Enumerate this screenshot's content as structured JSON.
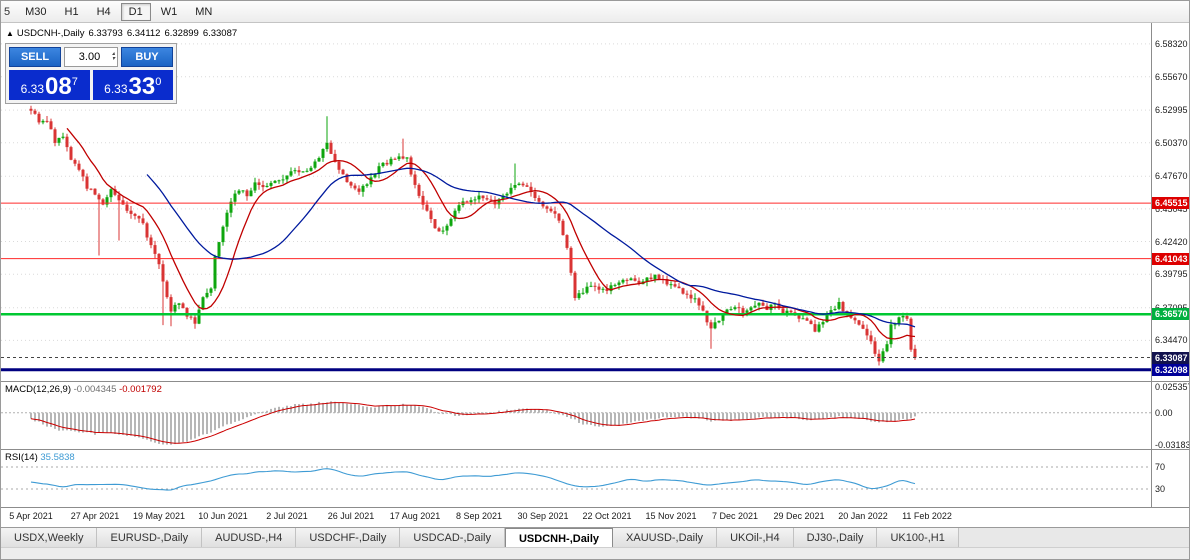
{
  "colors": {
    "up": "#0ea60e",
    "down": "#d93434",
    "ma_fast": "#c00000",
    "ma_slow": "#001a9e",
    "level_red": "#ff2a2a",
    "level_green": "#00c832",
    "level_navy": "#000080",
    "level_current": "#444444",
    "badge_red": "#dd0000",
    "badge_green": "#00b040",
    "badge_navy": "#000099",
    "badge_current": "#12124e",
    "macd_hist": "#b6b6b6",
    "macd_signal": "#cc0000",
    "rsi_line": "#3e9bd4",
    "grid": "#dadada"
  },
  "icons": {
    "one_click_toggle": "▲",
    "spin_up": "▴",
    "spin_down": "▾"
  },
  "toolbar": {
    "periods": [
      "5",
      "M30",
      "H1",
      "H4",
      "D1",
      "W1",
      "MN"
    ],
    "active": "D1",
    "clipped": "5"
  },
  "header": {
    "symbol_title": "USDCNH-,Daily",
    "ohlc": {
      "open": "6.33793",
      "high": "6.34112",
      "low": "6.32899",
      "close": "6.33087"
    }
  },
  "trade_panel": {
    "sell_label": "SELL",
    "buy_label": "BUY",
    "volume": "3.00",
    "sell_price": {
      "small": "6.33",
      "big": "08",
      "sup": "7"
    },
    "buy_price": {
      "small": "6.33",
      "big": "33",
      "sup": "0"
    }
  },
  "tabs": {
    "items": [
      "USDX,Weekly",
      "EURUSD-,Daily",
      "AUDUSD-,H4",
      "USDCHF-,Daily",
      "USDCAD-,Daily",
      "USDCNH-,Daily",
      "XAUUSD-,Daily",
      "UKOil-,H4",
      "DJ30-,Daily",
      "UK100-,H1"
    ],
    "active_index": 5
  },
  "chart_data": [
    {
      "type": "candlestick",
      "title": "USDCNH-,Daily",
      "x_labels": [
        "5 Apr 2021",
        "27 Apr 2021",
        "19 May 2021",
        "10 Jun 2021",
        "2 Jul 2021",
        "26 Jul 2021",
        "17 Aug 2021",
        "8 Sep 2021",
        "30 Sep 2021",
        "22 Oct 2021",
        "15 Nov 2021",
        "7 Dec 2021",
        "29 Dec 2021",
        "20 Jan 2022",
        "11 Feb 2022"
      ],
      "y_axis_labels": [
        "6.58320",
        "6.55670",
        "6.52995",
        "6.50370",
        "6.47670",
        "6.45045",
        "6.42420",
        "6.39795",
        "6.37095",
        "6.34470"
      ],
      "y_range": [
        6.312,
        6.6
      ],
      "candle_count": 222,
      "levels": [
        {
          "value": 6.45515,
          "label": "6.45515",
          "style": "red"
        },
        {
          "value": 6.41043,
          "label": "6.41043",
          "style": "red"
        },
        {
          "value": 6.3657,
          "label": "6.36570",
          "style": "green"
        },
        {
          "value": 6.33087,
          "label": "6.33087",
          "style": "current"
        },
        {
          "value": 6.32098,
          "label": "6.32098",
          "style": "navy"
        }
      ],
      "last_candle": {
        "open": 6.33793,
        "high": 6.34112,
        "low": 6.32899,
        "close": 6.33087
      },
      "price_keypoints": [
        [
          0,
          6.531
        ],
        [
          2,
          6.519
        ],
        [
          4,
          6.522
        ],
        [
          6,
          6.505
        ],
        [
          8,
          6.508
        ],
        [
          10,
          6.49
        ],
        [
          12,
          6.483
        ],
        [
          14,
          6.468
        ],
        [
          16,
          6.462
        ],
        [
          18,
          6.455
        ],
        [
          20,
          6.465
        ],
        [
          22,
          6.458
        ],
        [
          24,
          6.448
        ],
        [
          26,
          6.446
        ],
        [
          28,
          6.438
        ],
        [
          30,
          6.42
        ],
        [
          32,
          6.407
        ],
        [
          34,
          6.38
        ],
        [
          35,
          6.369
        ],
        [
          37,
          6.376
        ],
        [
          39,
          6.364
        ],
        [
          41,
          6.36
        ],
        [
          43,
          6.38
        ],
        [
          45,
          6.388
        ],
        [
          46,
          6.413
        ],
        [
          48,
          6.438
        ],
        [
          50,
          6.458
        ],
        [
          52,
          6.466
        ],
        [
          54,
          6.462
        ],
        [
          56,
          6.47
        ],
        [
          58,
          6.468
        ],
        [
          60,
          6.472
        ],
        [
          62,
          6.472
        ],
        [
          64,
          6.477
        ],
        [
          66,
          6.483
        ],
        [
          68,
          6.479
        ],
        [
          70,
          6.484
        ],
        [
          72,
          6.492
        ],
        [
          74,
          6.503
        ],
        [
          76,
          6.49
        ],
        [
          78,
          6.477
        ],
        [
          80,
          6.468
        ],
        [
          82,
          6.464
        ],
        [
          84,
          6.472
        ],
        [
          86,
          6.48
        ],
        [
          88,
          6.486
        ],
        [
          90,
          6.49
        ],
        [
          92,
          6.493
        ],
        [
          94,
          6.49
        ],
        [
          96,
          6.468
        ],
        [
          98,
          6.455
        ],
        [
          100,
          6.442
        ],
        [
          102,
          6.431
        ],
        [
          104,
          6.436
        ],
        [
          106,
          6.448
        ],
        [
          108,
          6.455
        ],
        [
          110,
          6.458
        ],
        [
          112,
          6.462
        ],
        [
          114,
          6.458
        ],
        [
          116,
          6.455
        ],
        [
          118,
          6.46
        ],
        [
          120,
          6.468
        ],
        [
          122,
          6.472
        ],
        [
          124,
          6.468
        ],
        [
          126,
          6.46
        ],
        [
          128,
          6.452
        ],
        [
          130,
          6.448
        ],
        [
          132,
          6.442
        ],
        [
          134,
          6.42
        ],
        [
          136,
          6.38
        ],
        [
          138,
          6.384
        ],
        [
          140,
          6.388
        ],
        [
          142,
          6.384
        ],
        [
          144,
          6.386
        ],
        [
          146,
          6.388
        ],
        [
          148,
          6.392
        ],
        [
          150,
          6.396
        ],
        [
          152,
          6.39
        ],
        [
          154,
          6.394
        ],
        [
          156,
          6.397
        ],
        [
          158,
          6.393
        ],
        [
          160,
          6.39
        ],
        [
          162,
          6.386
        ],
        [
          164,
          6.382
        ],
        [
          166,
          6.378
        ],
        [
          168,
          6.368
        ],
        [
          170,
          6.353
        ],
        [
          172,
          6.362
        ],
        [
          174,
          6.368
        ],
        [
          176,
          6.371
        ],
        [
          178,
          6.368
        ],
        [
          180,
          6.372
        ],
        [
          182,
          6.375
        ],
        [
          184,
          6.37
        ],
        [
          186,
          6.373
        ],
        [
          188,
          6.368
        ],
        [
          190,
          6.366
        ],
        [
          192,
          6.364
        ],
        [
          194,
          6.36
        ],
        [
          196,
          6.353
        ],
        [
          198,
          6.36
        ],
        [
          200,
          6.369
        ],
        [
          202,
          6.374
        ],
        [
          204,
          6.366
        ],
        [
          206,
          6.36
        ],
        [
          208,
          6.355
        ],
        [
          210,
          6.342
        ],
        [
          212,
          6.328
        ],
        [
          214,
          6.34
        ],
        [
          215,
          6.356
        ],
        [
          217,
          6.363
        ],
        [
          219,
          6.363
        ],
        [
          220,
          6.338
        ],
        [
          221,
          6.331
        ]
      ],
      "spike_highs": [
        [
          74,
          6.525
        ],
        [
          93,
          6.507
        ],
        [
          121,
          6.487
        ]
      ],
      "wick_lows": [
        [
          17,
          6.413
        ],
        [
          22,
          6.425
        ],
        [
          33,
          6.357
        ],
        [
          35,
          6.356
        ],
        [
          41,
          6.354
        ],
        [
          170,
          6.338
        ],
        [
          212,
          6.3245
        ]
      ],
      "moving_averages": [
        {
          "name": "fast",
          "color_key": "ma_fast",
          "window": 10
        },
        {
          "name": "slow",
          "color_key": "ma_slow",
          "window": 30
        }
      ]
    },
    {
      "type": "macd",
      "label": "MACD(12,26,9)",
      "value_main": "-0.004345",
      "value_signal": "-0.001792",
      "axis_labels": [
        {
          "text": "0.025357",
          "value": 0.025357
        },
        {
          "text": "0.00",
          "value": 0
        },
        {
          "text": "-0.03183",
          "value": -0.03183
        }
      ],
      "axis_max": 0.025357,
      "axis_min": -0.03183,
      "keypoints": [
        [
          0,
          -0.006
        ],
        [
          4,
          -0.013
        ],
        [
          8,
          -0.018
        ],
        [
          12,
          -0.019
        ],
        [
          16,
          -0.021
        ],
        [
          20,
          -0.02
        ],
        [
          24,
          -0.022
        ],
        [
          28,
          -0.026
        ],
        [
          32,
          -0.03
        ],
        [
          35,
          -0.0318
        ],
        [
          38,
          -0.029
        ],
        [
          42,
          -0.024
        ],
        [
          46,
          -0.017
        ],
        [
          50,
          -0.01
        ],
        [
          54,
          -0.004
        ],
        [
          58,
          0.001
        ],
        [
          62,
          0.005
        ],
        [
          66,
          0.008
        ],
        [
          70,
          0.009
        ],
        [
          74,
          0.011
        ],
        [
          78,
          0.01
        ],
        [
          82,
          0.007
        ],
        [
          86,
          0.006
        ],
        [
          90,
          0.007
        ],
        [
          94,
          0.008
        ],
        [
          98,
          0.005
        ],
        [
          102,
          0.0
        ],
        [
          106,
          -0.003
        ],
        [
          110,
          -0.002
        ],
        [
          114,
          0.0
        ],
        [
          118,
          0.002
        ],
        [
          122,
          0.004
        ],
        [
          126,
          0.004
        ],
        [
          130,
          0.001
        ],
        [
          134,
          -0.004
        ],
        [
          138,
          -0.011
        ],
        [
          142,
          -0.014
        ],
        [
          146,
          -0.013
        ],
        [
          150,
          -0.01
        ],
        [
          154,
          -0.007
        ],
        [
          158,
          -0.005
        ],
        [
          162,
          -0.004
        ],
        [
          166,
          -0.005
        ],
        [
          170,
          -0.008
        ],
        [
          174,
          -0.008
        ],
        [
          178,
          -0.006
        ],
        [
          182,
          -0.005
        ],
        [
          186,
          -0.004
        ],
        [
          190,
          -0.005
        ],
        [
          194,
          -0.007
        ],
        [
          198,
          -0.006
        ],
        [
          202,
          -0.004
        ],
        [
          206,
          -0.005
        ],
        [
          210,
          -0.009
        ],
        [
          214,
          -0.01
        ],
        [
          218,
          -0.007
        ],
        [
          221,
          -0.004345
        ]
      ]
    },
    {
      "type": "line",
      "label": "RSI(14)",
      "value": "35.5838",
      "levels": [
        {
          "text": "70",
          "value": 70
        },
        {
          "text": "30",
          "value": 30
        }
      ],
      "keypoints": [
        [
          0,
          45
        ],
        [
          4,
          38
        ],
        [
          8,
          34
        ],
        [
          12,
          40
        ],
        [
          16,
          36
        ],
        [
          20,
          40
        ],
        [
          24,
          37
        ],
        [
          28,
          33
        ],
        [
          32,
          29
        ],
        [
          35,
          27
        ],
        [
          38,
          36
        ],
        [
          42,
          40
        ],
        [
          46,
          48
        ],
        [
          50,
          55
        ],
        [
          54,
          58
        ],
        [
          58,
          62
        ],
        [
          62,
          64
        ],
        [
          66,
          60
        ],
        [
          70,
          62
        ],
        [
          74,
          68
        ],
        [
          78,
          58
        ],
        [
          82,
          52
        ],
        [
          86,
          57
        ],
        [
          90,
          60
        ],
        [
          94,
          62
        ],
        [
          98,
          52
        ],
        [
          102,
          45
        ],
        [
          106,
          52
        ],
        [
          110,
          55
        ],
        [
          114,
          52
        ],
        [
          118,
          56
        ],
        [
          122,
          60
        ],
        [
          126,
          55
        ],
        [
          130,
          50
        ],
        [
          134,
          40
        ],
        [
          138,
          33
        ],
        [
          142,
          36
        ],
        [
          146,
          42
        ],
        [
          150,
          47
        ],
        [
          154,
          44
        ],
        [
          158,
          47
        ],
        [
          162,
          45
        ],
        [
          166,
          42
        ],
        [
          170,
          35
        ],
        [
          174,
          42
        ],
        [
          178,
          45
        ],
        [
          182,
          47
        ],
        [
          186,
          44
        ],
        [
          190,
          42
        ],
        [
          194,
          38
        ],
        [
          198,
          44
        ],
        [
          202,
          48
        ],
        [
          206,
          40
        ],
        [
          210,
          30
        ],
        [
          214,
          35
        ],
        [
          217,
          45
        ],
        [
          219,
          47
        ],
        [
          221,
          35.58
        ]
      ]
    }
  ]
}
